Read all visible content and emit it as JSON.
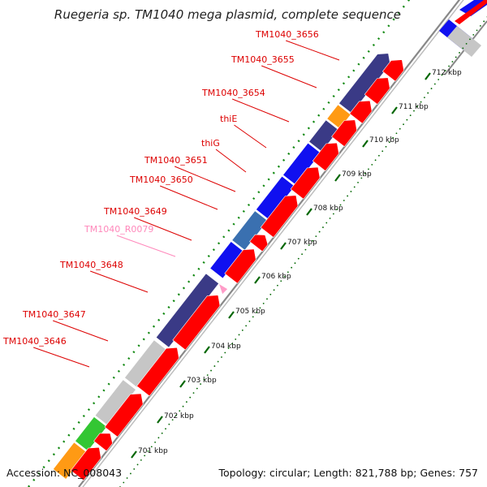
{
  "title": "Ruegeria sp. TM1040 mega plasmid, complete sequence",
  "footer": {
    "accession": "Accession: NC_008043",
    "summary": "Topology: circular; Length: 821,788 bp; Genes: 757"
  },
  "colors": {
    "forward_cds": "#3a3a86",
    "forward_cds_blue": "#1010f0",
    "forward_cds_steel": "#3a70b0",
    "reverse_cds": "#ff0000",
    "gray_gene": "#c6c6c6",
    "orange_gene": "#ff9a14",
    "green_gene": "#33c633",
    "pink_rna": "#ff9cc8",
    "label_red": "#dd0000",
    "label_pink": "#ff88bb",
    "tick_green": "#006600",
    "backbone": "#888888"
  },
  "ticks": [
    "701 kbp",
    "702 kbp",
    "703 kbp",
    "704 kbp",
    "705 kbp",
    "706 kbp",
    "707 kbp",
    "708 kbp",
    "709 kbp",
    "710 kbp",
    "711 kbp",
    "712 kbp"
  ],
  "gene_labels": [
    {
      "text": "TM1040_3656",
      "color": "red"
    },
    {
      "text": "TM1040_3655",
      "color": "red"
    },
    {
      "text": "TM1040_3654",
      "color": "red"
    },
    {
      "text": "thiE",
      "color": "red"
    },
    {
      "text": "thiG",
      "color": "red"
    },
    {
      "text": "TM1040_3651",
      "color": "red"
    },
    {
      "text": "TM1040_3650",
      "color": "red"
    },
    {
      "text": "TM1040_3649",
      "color": "red"
    },
    {
      "text": "TM1040_R0079",
      "color": "pink"
    },
    {
      "text": "TM1040_3648",
      "color": "red"
    },
    {
      "text": "TM1040_3647",
      "color": "red"
    },
    {
      "text": "TM1040_3646",
      "color": "red"
    }
  ]
}
